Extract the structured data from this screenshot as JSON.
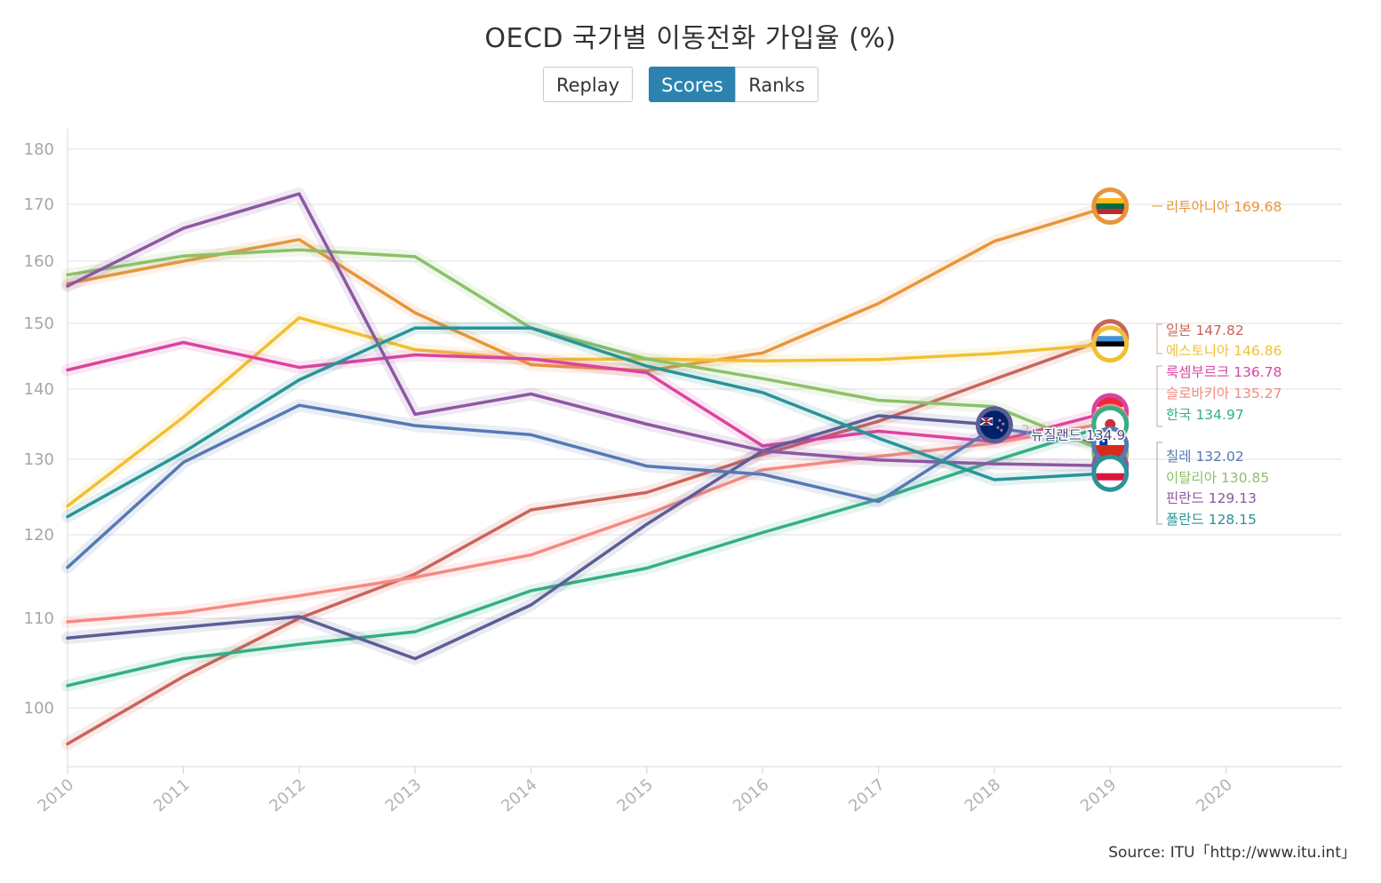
{
  "title": "OECD 국가별 이동전화 가입율 (%)",
  "controls": {
    "replay": "Replay",
    "scores": "Scores",
    "ranks": "Ranks",
    "active": "Scores"
  },
  "source": "Source: ITU「http://www.itu.int」",
  "chart_data": {
    "type": "line",
    "x": [
      2010,
      2011,
      2012,
      2013,
      2014,
      2015,
      2016,
      2017,
      2018,
      2019
    ],
    "x_ticks": [
      "2010",
      "2011",
      "2012",
      "2013",
      "2014",
      "2015",
      "2016",
      "2017",
      "2018",
      "2019",
      "2020"
    ],
    "xlim": [
      2010,
      2021
    ],
    "y_ticks": [
      100,
      110,
      120,
      130,
      140,
      150,
      160,
      170,
      180
    ],
    "ylim": [
      95,
      182
    ],
    "grid": true,
    "series": [
      {
        "name": "리투아니아",
        "color": "#e8953a",
        "label": "리투아니아 169.68",
        "flag": "lithuania",
        "values": [
          156.4,
          160.0,
          163.8,
          151.7,
          143.7,
          142.8,
          145.5,
          153.2,
          163.5,
          169.68
        ]
      },
      {
        "name": "일본",
        "color": "#c9645a",
        "label": "일본 147.82",
        "flag": "japan",
        "values": [
          96.0,
          103.5,
          110.0,
          115.3,
          123.3,
          125.6,
          130.7,
          135.4,
          141.5,
          147.82
        ]
      },
      {
        "name": "에스토니아",
        "color": "#f1bf33",
        "label": "에스토니아 146.86",
        "flag": "estonia",
        "values": [
          123.8,
          136.0,
          150.9,
          146.0,
          144.5,
          144.6,
          144.3,
          144.5,
          145.4,
          146.86
        ]
      },
      {
        "name": "룩셈부르크",
        "color": "#d9449f",
        "label": "룩셈부르크 136.78",
        "flag": "luxembourg",
        "values": [
          142.9,
          147.1,
          143.3,
          145.2,
          144.6,
          142.5,
          131.9,
          134.0,
          132.5,
          136.78
        ]
      },
      {
        "name": "슬로바키아",
        "color": "#f48a82",
        "label": "슬로바키아 135.27",
        "flag": "slovakia",
        "values": [
          109.6,
          110.7,
          112.7,
          114.9,
          117.6,
          122.7,
          128.6,
          130.4,
          132.3,
          135.27
        ]
      },
      {
        "name": "한국",
        "color": "#35ae86",
        "label": "한국 134.97",
        "flag": "korea",
        "values": [
          102.5,
          105.5,
          107.1,
          108.5,
          113.3,
          116.0,
          120.3,
          124.7,
          129.8,
          134.97
        ]
      },
      {
        "name": "뉴질랜드",
        "color": "#5c5d96",
        "label": "뉴질랜드 134.9",
        "flag": "newzealand",
        "last_year": 2018,
        "values": [
          107.8,
          109.0,
          110.2,
          105.5,
          111.6,
          121.4,
          131.2,
          136.2,
          134.9,
          null
        ]
      },
      {
        "name": "칠레",
        "color": "#5778b4",
        "label": "칠레 132.02",
        "flag": "chile",
        "values": [
          116.1,
          129.6,
          137.7,
          134.8,
          133.5,
          129.1,
          128.0,
          124.4,
          134.5,
          132.02
        ]
      },
      {
        "name": "이탈리아",
        "color": "#8dc06a",
        "label": "이탈리아 130.85",
        "flag": "italy",
        "values": [
          157.8,
          160.9,
          162.0,
          160.8,
          149.3,
          144.6,
          141.6,
          138.4,
          137.5,
          130.85
        ]
      },
      {
        "name": "핀란드",
        "color": "#8c58a2",
        "label": "핀란드 129.13",
        "flag": "finland",
        "values": [
          156.0,
          165.8,
          171.9,
          136.4,
          139.3,
          135.0,
          131.2,
          129.9,
          129.4,
          129.13
        ]
      },
      {
        "name": "폴란드",
        "color": "#2a9397",
        "label": "폴란드 128.15",
        "flag": "poland",
        "values": [
          122.4,
          131.0,
          141.4,
          149.3,
          149.3,
          143.5,
          139.5,
          133.0,
          127.3,
          128.15
        ]
      }
    ]
  }
}
